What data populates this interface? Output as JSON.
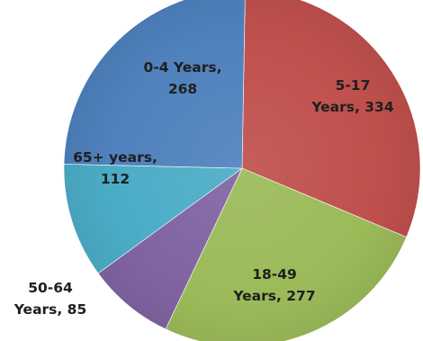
{
  "chart_data": {
    "type": "pie",
    "start_category": "5-17 Years",
    "direction": "clockwise",
    "slices": [
      {
        "category": "5-17 Years",
        "value": 334,
        "color": "#C0504D",
        "label_lines": [
          "5-17",
          "Years, 334"
        ]
      },
      {
        "category": "18-49 Years",
        "value": 277,
        "color": "#9BBB59",
        "label_lines": [
          "18-49",
          "Years, 277"
        ]
      },
      {
        "category": "50-64 Years",
        "value": 85,
        "color": "#8064A2",
        "label_lines": [
          "50-64",
          "Years, 85"
        ]
      },
      {
        "category": "65+ years",
        "value": 112,
        "color": "#4BACC6",
        "label_lines": [
          "65+ years,",
          "112"
        ]
      },
      {
        "category": "0-4 Years",
        "value": 268,
        "color": "#4F81BD",
        "label_lines": [
          "0-4 Years,",
          "268"
        ]
      }
    ],
    "title": "",
    "legend": "none",
    "data_labels": "category and value"
  }
}
